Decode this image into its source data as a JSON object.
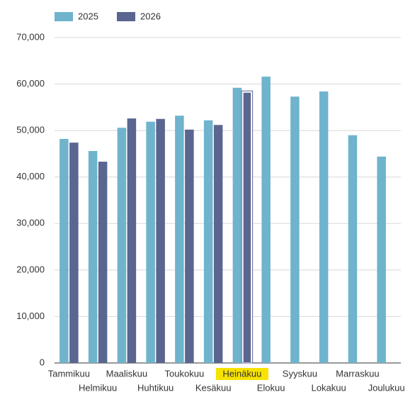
{
  "chart_data": {
    "type": "bar",
    "categories": [
      "Tammikuu",
      "Helmikuu",
      "Maaliskuu",
      "Huhtikuu",
      "Toukokuu",
      "Kesäkuu",
      "Heinäkuu",
      "Elokuu",
      "Syyskuu",
      "Lokakuu",
      "Marraskuu",
      "Joulukuu"
    ],
    "series": [
      {
        "name": "2025",
        "color": "#6fb3cd",
        "values": [
          48200,
          45600,
          50600,
          51900,
          53200,
          52200,
          59200,
          61600,
          57300,
          58400,
          49000,
          44400
        ]
      },
      {
        "name": "2026",
        "color": "#5a6690",
        "values": [
          47400,
          43300,
          52600,
          52500,
          50200,
          51200,
          58300,
          null,
          null,
          null,
          null,
          null
        ]
      }
    ],
    "ylim": [
      0,
      70000
    ],
    "yticks": [
      0,
      {
        "value": 10000,
        "label": "10,000"
      },
      {
        "value": 20000,
        "label": "20,000"
      },
      {
        "value": 30000,
        "label": "30,000"
      },
      {
        "value": 40000,
        "label": "40,000"
      },
      {
        "value": 50000,
        "label": "50,000"
      },
      {
        "value": 60000,
        "label": "60,000"
      },
      {
        "value": 70000,
        "label": "70,000"
      }
    ],
    "grid": true,
    "legend": "top-left",
    "highlight_index": 6
  }
}
